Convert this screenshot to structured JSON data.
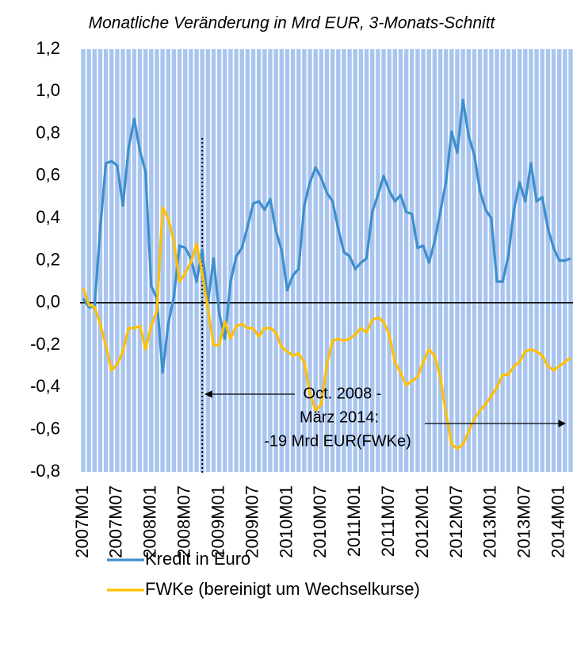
{
  "chart_data": {
    "type": "line",
    "title": "Monatliche Veränderung in Mrd EUR, 3-Monats-Schnitt",
    "categories": [
      "2007M01",
      null,
      null,
      null,
      null,
      null,
      "2007M07",
      null,
      null,
      null,
      null,
      null,
      "2008M01",
      null,
      null,
      null,
      null,
      null,
      "2008M07",
      null,
      null,
      null,
      null,
      null,
      "2009M01",
      null,
      null,
      null,
      null,
      null,
      "2009M07",
      null,
      null,
      null,
      null,
      null,
      "2010M01",
      null,
      null,
      null,
      null,
      null,
      "2010M07",
      null,
      null,
      null,
      null,
      null,
      "2011M01",
      null,
      null,
      null,
      null,
      null,
      "2011M07",
      null,
      null,
      null,
      null,
      null,
      "2012M01",
      null,
      null,
      null,
      null,
      null,
      "2012M07",
      null,
      null,
      null,
      null,
      null,
      "2013M01",
      null,
      null,
      null,
      null,
      null,
      "2013M07",
      null,
      null,
      null,
      null,
      null,
      "2014M01",
      null,
      null
    ],
    "series": [
      {
        "name": "Kredit in Euro",
        "color": "#3d8fcd",
        "values": [
          0.02,
          -0.02,
          -0.02,
          0.35,
          0.66,
          0.67,
          0.65,
          0.46,
          0.73,
          0.87,
          0.72,
          0.62,
          0.08,
          0.02,
          -0.33,
          -0.1,
          0.03,
          0.27,
          0.26,
          0.21,
          0.1,
          0.25,
          0.0,
          0.21,
          -0.05,
          -0.17,
          0.1,
          0.22,
          0.26,
          0.36,
          0.47,
          0.48,
          0.44,
          0.49,
          0.34,
          0.25,
          0.06,
          0.13,
          0.16,
          0.46,
          0.57,
          0.64,
          0.59,
          0.52,
          0.48,
          0.35,
          0.24,
          0.22,
          0.16,
          0.19,
          0.21,
          0.43,
          0.51,
          0.6,
          0.53,
          0.48,
          0.51,
          0.43,
          0.42,
          0.26,
          0.27,
          0.19,
          0.29,
          0.43,
          0.57,
          0.81,
          0.71,
          0.96,
          0.79,
          0.7,
          0.53,
          0.44,
          0.4,
          0.1,
          0.1,
          0.22,
          0.44,
          0.57,
          0.48,
          0.66,
          0.48,
          0.5,
          0.35,
          0.26,
          0.2,
          0.2,
          0.21
        ]
      },
      {
        "name": "FWKe (bereinigt um Wechselkurse)",
        "color": "#ffc000",
        "values": [
          0.07,
          -0.01,
          -0.02,
          -0.1,
          -0.2,
          -0.32,
          -0.29,
          -0.23,
          -0.12,
          -0.12,
          -0.11,
          -0.22,
          -0.11,
          -0.04,
          0.45,
          0.4,
          0.29,
          0.1,
          0.14,
          0.19,
          0.28,
          0.14,
          -0.03,
          -0.2,
          -0.2,
          -0.09,
          -0.17,
          -0.11,
          -0.1,
          -0.12,
          -0.12,
          -0.16,
          -0.12,
          -0.12,
          -0.14,
          -0.21,
          -0.23,
          -0.25,
          -0.24,
          -0.28,
          -0.43,
          -0.51,
          -0.48,
          -0.29,
          -0.18,
          -0.17,
          -0.18,
          -0.17,
          -0.15,
          -0.12,
          -0.14,
          -0.08,
          -0.07,
          -0.09,
          -0.15,
          -0.28,
          -0.33,
          -0.39,
          -0.37,
          -0.35,
          -0.28,
          -0.22,
          -0.25,
          -0.35,
          -0.52,
          -0.67,
          -0.69,
          -0.67,
          -0.61,
          -0.55,
          -0.51,
          -0.48,
          -0.44,
          -0.4,
          -0.34,
          -0.34,
          -0.3,
          -0.28,
          -0.23,
          -0.22,
          -0.23,
          -0.25,
          -0.3,
          -0.32,
          -0.3,
          -0.28,
          -0.26
        ]
      }
    ],
    "ylim": [
      -0.8,
      1.2
    ],
    "yticks": [
      {
        "value": -0.8,
        "label": "-0,8"
      },
      {
        "value": -0.6,
        "label": "-0,6"
      },
      {
        "value": -0.4,
        "label": "-0,4"
      },
      {
        "value": -0.2,
        "label": "-0,2"
      },
      {
        "value": 0,
        "label": "0,0"
      },
      {
        "value": 0.2,
        "label": "0,2"
      },
      {
        "value": 0.4,
        "label": "0,4"
      },
      {
        "value": 0.6,
        "label": "0,6"
      },
      {
        "value": 0.8,
        "label": "0,8"
      },
      {
        "value": 1.0,
        "label": "1,0"
      },
      {
        "value": 1.2,
        "label": "1,2"
      }
    ],
    "annotation": [
      "Oct. 2008 -",
      "März 2014:",
      "-19 Mrd EUR(FWKe)"
    ],
    "grid": false,
    "legend": "bottom"
  }
}
